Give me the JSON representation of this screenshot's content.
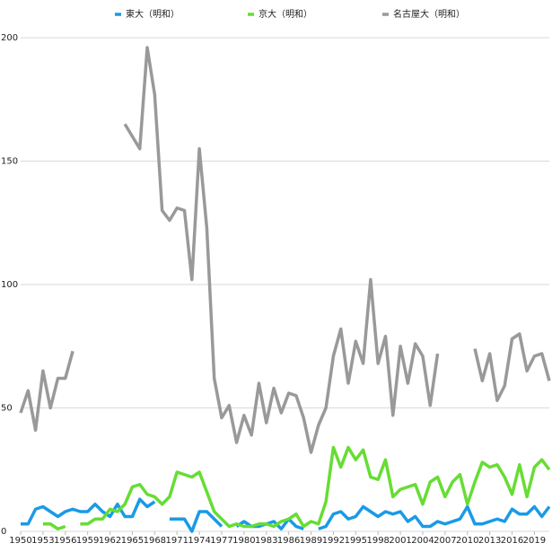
{
  "chart_data": {
    "type": "line",
    "x": [
      1950,
      1951,
      1952,
      1953,
      1954,
      1955,
      1956,
      1957,
      1958,
      1959,
      1960,
      1961,
      1962,
      1963,
      1964,
      1965,
      1966,
      1967,
      1968,
      1969,
      1970,
      1971,
      1972,
      1973,
      1974,
      1975,
      1976,
      1977,
      1978,
      1979,
      1980,
      1981,
      1982,
      1983,
      1984,
      1985,
      1986,
      1987,
      1988,
      1989,
      1990,
      1991,
      1992,
      1993,
      1994,
      1995,
      1996,
      1997,
      1998,
      1999,
      2000,
      2001,
      2002,
      2003,
      2004,
      2005,
      2006,
      2007,
      2008,
      2009,
      2010,
      2011,
      2012,
      2013,
      2014,
      2015,
      2016,
      2017,
      2018,
      2019,
      2020,
      2021
    ],
    "xlim": [
      1950,
      2021
    ],
    "xticks": [
      1950,
      1953,
      1956,
      1959,
      1962,
      1965,
      1968,
      1971,
      1974,
      1977,
      1980,
      1983,
      1986,
      1989,
      1992,
      1995,
      1998,
      2001,
      2004,
      2007,
      2010,
      2013,
      2016,
      2019
    ],
    "ylim": [
      0,
      200
    ],
    "yticks": [
      0,
      50,
      100,
      150,
      200
    ],
    "grid": true,
    "legend": "top",
    "series": [
      {
        "name": "東大（明和）",
        "color": "#1a9ae6",
        "values": [
          3,
          3,
          9,
          10,
          8,
          6,
          8,
          9,
          8,
          8,
          11,
          8,
          6,
          11,
          6,
          6,
          13,
          10,
          12,
          null,
          5,
          5,
          5,
          0,
          8,
          8,
          5,
          2,
          null,
          2,
          4,
          2,
          2,
          3,
          4,
          1,
          5,
          2,
          1,
          null,
          1,
          2,
          7,
          8,
          5,
          6,
          10,
          8,
          6,
          8,
          7,
          8,
          4,
          6,
          2,
          2,
          4,
          3,
          4,
          5,
          10,
          3,
          3,
          4,
          5,
          4,
          9,
          7,
          7,
          10,
          6,
          10
        ]
      },
      {
        "name": "京大（明和）",
        "color": "#66dd33",
        "values": [
          null,
          null,
          null,
          3,
          3,
          1,
          2,
          null,
          3,
          3,
          5,
          5,
          9,
          8,
          11,
          18,
          19,
          15,
          14,
          11,
          14,
          24,
          23,
          22,
          24,
          16,
          8,
          5,
          2,
          3,
          2,
          2,
          3,
          3,
          2,
          4,
          5,
          7,
          2,
          4,
          3,
          12,
          34,
          26,
          34,
          29,
          33,
          22,
          21,
          29,
          14,
          17,
          18,
          19,
          11,
          20,
          22,
          14,
          20,
          23,
          11,
          20,
          28,
          26,
          27,
          22,
          15,
          27,
          14,
          26,
          29,
          25
        ]
      },
      {
        "name": "名古屋大（明和）",
        "color": "#999999",
        "values": [
          48,
          57,
          41,
          65,
          50,
          62,
          62,
          73,
          null,
          null,
          null,
          null,
          null,
          null,
          165,
          160,
          155,
          196,
          177,
          130,
          126,
          131,
          130,
          102,
          155,
          123,
          62,
          46,
          51,
          36,
          47,
          39,
          60,
          44,
          58,
          48,
          56,
          55,
          46,
          32,
          43,
          50,
          71,
          82,
          60,
          77,
          68,
          102,
          68,
          79,
          47,
          75,
          60,
          76,
          71,
          51,
          72,
          null,
          null,
          null,
          null,
          74,
          61,
          72,
          53,
          59,
          78,
          80,
          65,
          71,
          72,
          61
        ]
      }
    ]
  }
}
